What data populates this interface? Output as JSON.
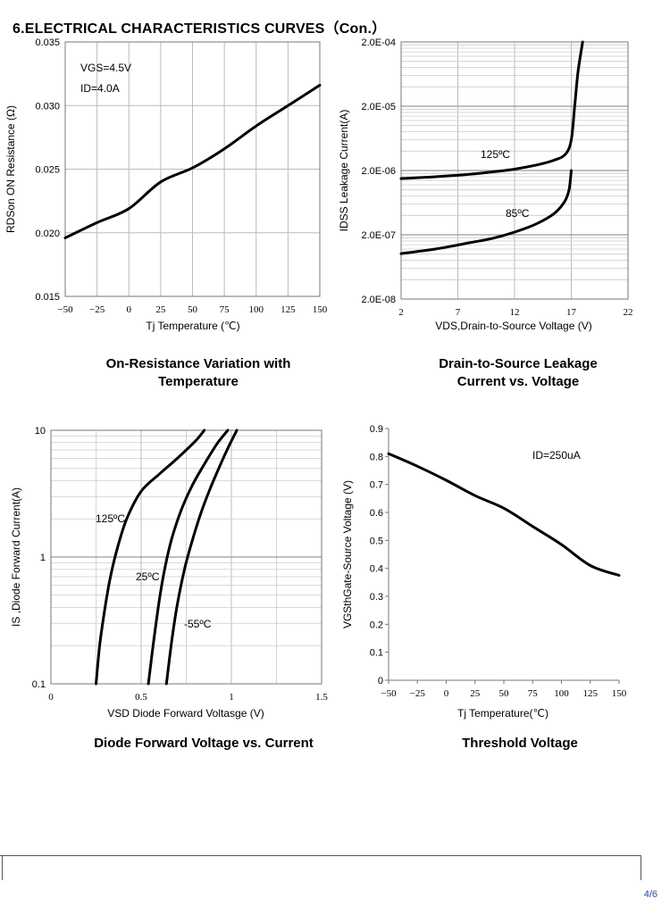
{
  "page": {
    "title": "6.ELECTRICAL CHARACTERISTICS CURVES（Con.）",
    "page_number": "4/6"
  },
  "captions": [
    [
      "On-Resistance Variation with",
      "Temperature"
    ],
    [
      "Drain-to-Source Leakage",
      "Current vs. Voltage"
    ],
    [
      "Diode Forward Voltage vs. Current"
    ],
    [
      "Threshold Voltage"
    ]
  ],
  "chart_data": [
    {
      "type": "line",
      "xlabel": "Tj Temperature (℃)",
      "ylabel": "RDSon ON Resistance (Ω)",
      "xlim": [
        -50,
        150
      ],
      "ylim": [
        0.015,
        0.035
      ],
      "xticks": [
        "−50",
        "−25",
        "0",
        "25",
        "50",
        "75",
        "100",
        "125",
        "150"
      ],
      "yticks": [
        "0.015",
        "0.020",
        "0.025",
        "0.030",
        "0.035"
      ],
      "annotations": [
        "VGS=4.5V",
        "ID=4.0A"
      ],
      "grid": true,
      "series": [
        {
          "x": [
            -50,
            -25,
            0,
            25,
            50,
            75,
            100,
            125,
            150
          ],
          "y": [
            0.0196,
            0.0208,
            0.0219,
            0.024,
            0.0251,
            0.0266,
            0.0284,
            0.03,
            0.0316
          ]
        }
      ]
    },
    {
      "type": "line",
      "xlabel": "VDS,Drain-to-Source Voltage (V)",
      "ylabel": "IDSS Leakage Current(A)",
      "xlim": [
        2,
        22
      ],
      "ylim": [
        2e-08,
        0.0002
      ],
      "yscale": "log",
      "xticks": [
        "2",
        "7",
        "12",
        "17",
        "22"
      ],
      "yticks": [
        "2.0E-08",
        "2.0E-07",
        "2.0E-06",
        "2.0E-05",
        "2.0E-04"
      ],
      "grid": true,
      "series": [
        {
          "name": "125ºC",
          "x": [
            2,
            5,
            8,
            10,
            12,
            14,
            15.5,
            16.5,
            17.0,
            17.3,
            17.6,
            18.0
          ],
          "y": [
            1.5e-06,
            1.6e-06,
            1.75e-06,
            1.9e-06,
            2.1e-06,
            2.45e-06,
            2.9e-06,
            3.6e-06,
            6e-06,
            2e-05,
            7e-05,
            0.0002
          ]
        },
        {
          "name": "85ºC",
          "x": [
            2,
            5,
            8,
            10,
            12,
            14,
            15.5,
            16.4,
            16.8,
            17.0
          ],
          "y": [
            1.02e-07,
            1.2e-07,
            1.5e-07,
            1.75e-07,
            2.2e-07,
            3e-07,
            4.3e-07,
            6.5e-07,
            1e-06,
            2e-06
          ]
        }
      ]
    },
    {
      "type": "line",
      "xlabel": "VSD Diode Forward Voltasge (V)",
      "ylabel": "IS ,Diode Forward Current(A)",
      "xlim": [
        0,
        1.5
      ],
      "ylim": [
        0.1,
        10
      ],
      "yscale": "log",
      "xticks": [
        "0",
        "0.5",
        "1",
        "1.5"
      ],
      "yticks": [
        "0.1",
        "1",
        "10"
      ],
      "grid": true,
      "series": [
        {
          "name": "125ºC",
          "x": [
            0.25,
            0.27,
            0.3,
            0.33,
            0.37,
            0.42,
            0.5,
            0.6,
            0.7,
            0.8,
            0.85
          ],
          "y": [
            0.1,
            0.2,
            0.4,
            0.7,
            1.2,
            2.0,
            3.3,
            4.5,
            6.0,
            8.2,
            10
          ]
        },
        {
          "name": "25ºC",
          "x": [
            0.54,
            0.57,
            0.6,
            0.63,
            0.67,
            0.72,
            0.78,
            0.85,
            0.92,
            0.98
          ],
          "y": [
            0.1,
            0.22,
            0.45,
            0.8,
            1.4,
            2.3,
            3.6,
            5.4,
            7.8,
            10
          ]
        },
        {
          "name": "-55ºC",
          "x": [
            0.64,
            0.67,
            0.7,
            0.74,
            0.78,
            0.83,
            0.88,
            0.93,
            0.98,
            1.03
          ],
          "y": [
            0.1,
            0.22,
            0.42,
            0.8,
            1.3,
            2.2,
            3.4,
            5.0,
            7.2,
            10
          ]
        }
      ]
    },
    {
      "type": "line",
      "xlabel": "Tj  Temperature(℃)",
      "ylabel": "VGSthGate-Source Voltage (V)",
      "xlim": [
        -50,
        150
      ],
      "ylim": [
        0,
        0.9
      ],
      "xticks": [
        "−50",
        "−25",
        "0",
        "25",
        "50",
        "75",
        "100",
        "125",
        "150"
      ],
      "yticks": [
        "0",
        "0.1",
        "0.2",
        "0.3",
        "0.4",
        "0.5",
        "0.6",
        "0.7",
        "0.8",
        "0.9"
      ],
      "annotations": [
        "ID=250uA"
      ],
      "grid": false,
      "series": [
        {
          "x": [
            -50,
            -25,
            0,
            25,
            50,
            75,
            100,
            125,
            150
          ],
          "y": [
            0.81,
            0.765,
            0.715,
            0.66,
            0.615,
            0.55,
            0.485,
            0.41,
            0.375
          ]
        }
      ]
    }
  ]
}
